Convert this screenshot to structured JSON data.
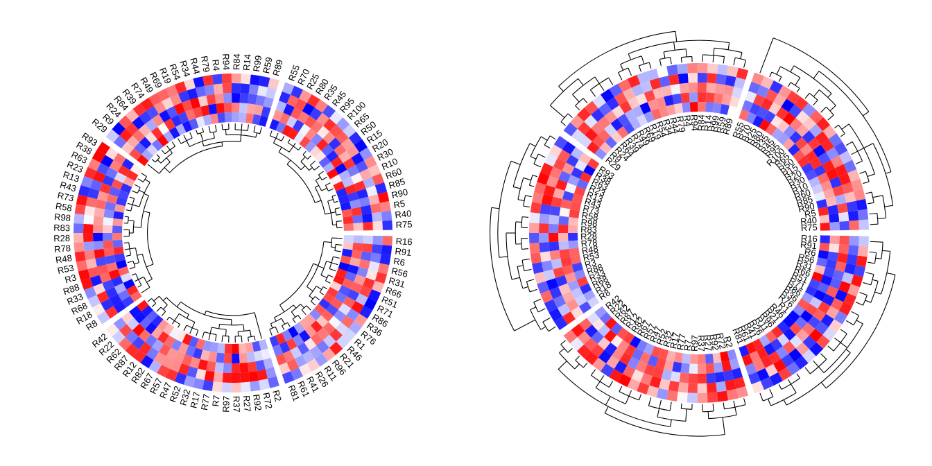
{
  "chart_data": [
    {
      "type": "heatmap",
      "layout": "circular",
      "label_position": "outside",
      "dendrogram_position": "inside",
      "tracks": 5,
      "sectors": [
        [
          "R75",
          "R40",
          "R5",
          "R90",
          "R85",
          "R60",
          "R10",
          "R30",
          "R20",
          "R15",
          "R50",
          "R65",
          "R100",
          "R95",
          "R45",
          "R35",
          "R80",
          "R25",
          "R70",
          "R55"
        ],
        [
          "R89",
          "R59",
          "R99",
          "R14",
          "R84",
          "R94",
          "R4",
          "R79",
          "R44",
          "R34",
          "R54",
          "R19",
          "R69",
          "R49",
          "R74",
          "R39",
          "R64",
          "R24",
          "R9",
          "R29"
        ],
        [
          "R93",
          "R38",
          "R63",
          "R23",
          "R13",
          "R43",
          "R73",
          "R58",
          "R98",
          "R83",
          "R28",
          "R78",
          "R48",
          "R53",
          "R3",
          "R88",
          "R33",
          "R68",
          "R18",
          "R8"
        ],
        [
          "R42",
          "R22",
          "R62",
          "R87",
          "R12",
          "R82",
          "R67",
          "R57",
          "R47",
          "R52",
          "R32",
          "R17",
          "R77",
          "R7",
          "R97",
          "R37",
          "R27",
          "R92",
          "R72",
          "R2"
        ],
        [
          "R81",
          "R61",
          "R41",
          "R26",
          "R11",
          "R96",
          "R21",
          "R46",
          "R1",
          "R76",
          "R36",
          "R86",
          "R71",
          "R51",
          "R66",
          "R31",
          "R56",
          "R6",
          "R91",
          "R16"
        ]
      ]
    },
    {
      "type": "heatmap",
      "layout": "circular",
      "label_position": "inside",
      "dendrogram_position": "outside",
      "tracks": 5,
      "sectors": [
        [
          "R75",
          "R40",
          "R5",
          "R90",
          "R85",
          "R60",
          "R10",
          "R30",
          "R20",
          "R15",
          "R50",
          "R65",
          "R100",
          "R95",
          "R45",
          "R35",
          "R80",
          "R25",
          "R70",
          "R55"
        ],
        [
          "R89",
          "R59",
          "R99",
          "R14",
          "R84",
          "R94",
          "R4",
          "R79",
          "R44",
          "R34",
          "R54",
          "R19",
          "R69",
          "R49",
          "R74",
          "R39",
          "R64",
          "R24",
          "R9",
          "R29"
        ],
        [
          "R93",
          "R38",
          "R63",
          "R23",
          "R13",
          "R43",
          "R73",
          "R58",
          "R98",
          "R83",
          "R28",
          "R78",
          "R48",
          "R53",
          "R3",
          "R88",
          "R33",
          "R68",
          "R18",
          "R8"
        ],
        [
          "R42",
          "R22",
          "R62",
          "R87",
          "R12",
          "R82",
          "R67",
          "R57",
          "R47",
          "R52",
          "R32",
          "R17",
          "R77",
          "R7",
          "R97",
          "R37",
          "R27",
          "R92",
          "R72",
          "R2"
        ],
        [
          "R81",
          "R61",
          "R41",
          "R26",
          "R11",
          "R96",
          "R21",
          "R46",
          "R1",
          "R76",
          "R36",
          "R86",
          "R71",
          "R51",
          "R66",
          "R31",
          "R56",
          "R6",
          "R91",
          "R16"
        ]
      ]
    }
  ],
  "colors": {
    "low": "#0000ff",
    "mid": "#ffffff",
    "high": "#ff0000",
    "line": "#000000"
  }
}
